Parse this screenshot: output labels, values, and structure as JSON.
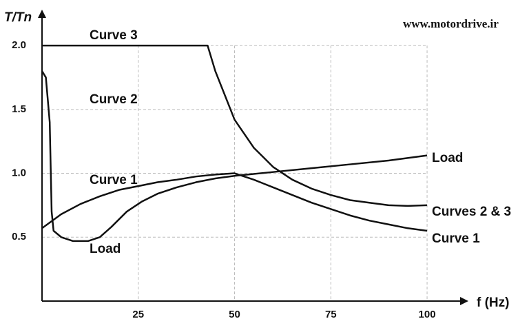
{
  "chart_data": {
    "type": "line",
    "watermark": "www.motordrive.ir",
    "y_label": "T/Tn",
    "x_label": "f (Hz)",
    "annotations": [
      "Curve 3",
      "Curve 2",
      "Curve 1",
      "Load"
    ],
    "xlim": [
      0,
      105
    ],
    "ylim": [
      0,
      2.2
    ],
    "xticks": [
      25,
      50,
      75,
      100
    ],
    "yticks": [
      0.5,
      {
        "value": 1,
        "label": "1.0"
      },
      1.5,
      {
        "value": 2,
        "label": "2.0"
      }
    ],
    "grid": true,
    "series": [
      {
        "name": "Curves 2 & 3",
        "color": "#111111",
        "x": [
          0,
          43,
          45,
          50,
          55,
          60,
          65,
          70,
          75,
          80,
          85,
          90,
          95,
          100
        ],
        "values": [
          2.0,
          2.0,
          1.8,
          1.42,
          1.2,
          1.05,
          0.95,
          0.88,
          0.83,
          0.79,
          0.77,
          0.75,
          0.745,
          0.75
        ]
      },
      {
        "name": "Curve 1",
        "color": "#111111",
        "x": [
          0,
          5,
          10,
          15,
          20,
          25,
          30,
          35,
          40,
          45,
          50,
          55,
          60,
          65,
          70,
          75,
          80,
          85,
          90,
          95,
          100
        ],
        "values": [
          0.57,
          0.68,
          0.76,
          0.82,
          0.87,
          0.9,
          0.93,
          0.95,
          0.975,
          0.99,
          1.0,
          0.95,
          0.89,
          0.83,
          0.77,
          0.72,
          0.67,
          0.63,
          0.6,
          0.57,
          0.55
        ]
      },
      {
        "name": "Load",
        "color": "#111111",
        "x": [
          0,
          1,
          2,
          2.5,
          3,
          5,
          8,
          12,
          15,
          18,
          22,
          26,
          30,
          35,
          40,
          45,
          50,
          60,
          70,
          80,
          90,
          100
        ],
        "values": [
          1.8,
          1.75,
          1.4,
          0.7,
          0.55,
          0.5,
          0.47,
          0.47,
          0.5,
          0.58,
          0.7,
          0.78,
          0.84,
          0.89,
          0.93,
          0.96,
          0.98,
          1.01,
          1.04,
          1.07,
          1.1,
          1.14
        ]
      }
    ]
  }
}
